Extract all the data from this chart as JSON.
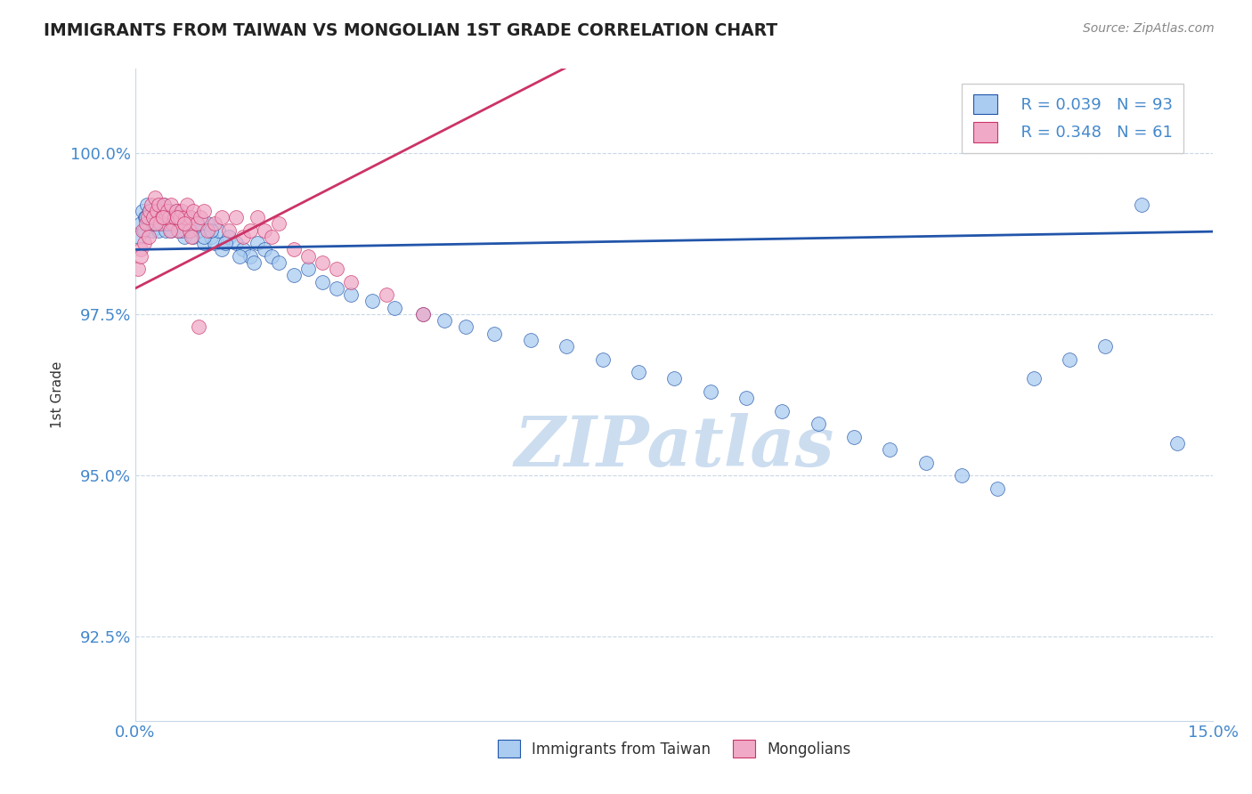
{
  "title": "IMMIGRANTS FROM TAIWAN VS MONGOLIAN 1ST GRADE CORRELATION CHART",
  "source_text": "Source: ZipAtlas.com",
  "ylabel": "1st Grade",
  "xlim": [
    0.0,
    15.0
  ],
  "ylim": [
    91.2,
    101.3
  ],
  "xtick_labels": [
    "0.0%",
    "15.0%"
  ],
  "xtick_positions": [
    0.0,
    15.0
  ],
  "ytick_labels": [
    "92.5%",
    "95.0%",
    "97.5%",
    "100.0%"
  ],
  "ytick_positions": [
    92.5,
    95.0,
    97.5,
    100.0
  ],
  "legend_label1": "Immigrants from Taiwan",
  "legend_label2": "Mongolians",
  "R1": 0.039,
  "N1": 93,
  "R2": 0.348,
  "N2": 61,
  "color_taiwan": "#aaccf0",
  "color_mongolia": "#f0aac8",
  "color_taiwan_line": "#2255aa",
  "color_mongolia_line": "#cc3366",
  "title_color": "#222222",
  "axis_label_color": "#333333",
  "tick_color": "#4488cc",
  "source_color": "#888888",
  "watermark_color": "#ccddf0",
  "grid_color": "#c8d8e8",
  "taiwan_x": [
    0.05,
    0.08,
    0.1,
    0.12,
    0.14,
    0.16,
    0.18,
    0.2,
    0.22,
    0.24,
    0.26,
    0.28,
    0.3,
    0.32,
    0.34,
    0.36,
    0.38,
    0.4,
    0.42,
    0.44,
    0.46,
    0.48,
    0.5,
    0.52,
    0.55,
    0.58,
    0.6,
    0.62,
    0.65,
    0.68,
    0.7,
    0.75,
    0.8,
    0.85,
    0.9,
    0.95,
    1.0,
    1.05,
    1.1,
    1.15,
    1.2,
    1.3,
    1.4,
    1.5,
    1.6,
    1.7,
    1.8,
    1.9,
    2.0,
    2.2,
    2.4,
    2.6,
    2.8,
    3.0,
    3.3,
    3.6,
    4.0,
    4.3,
    4.6,
    5.0,
    5.5,
    6.0,
    6.5,
    7.0,
    7.5,
    8.0,
    8.5,
    9.0,
    9.5,
    10.0,
    10.5,
    11.0,
    11.5,
    12.0,
    12.5,
    13.0,
    13.5,
    14.0,
    14.5,
    0.15,
    0.25,
    0.35,
    0.45,
    0.55,
    0.65,
    0.75,
    0.85,
    0.95,
    1.05,
    1.25,
    1.45,
    1.65
  ],
  "taiwan_y": [
    98.7,
    98.9,
    99.1,
    98.8,
    99.0,
    99.2,
    98.9,
    99.1,
    99.0,
    98.8,
    99.1,
    98.9,
    99.0,
    98.8,
    99.1,
    99.0,
    98.9,
    99.2,
    98.8,
    99.0,
    98.9,
    99.1,
    98.8,
    99.0,
    98.9,
    99.1,
    98.8,
    99.0,
    98.9,
    98.7,
    99.0,
    98.8,
    98.7,
    98.9,
    98.8,
    98.6,
    98.9,
    98.7,
    98.6,
    98.8,
    98.5,
    98.7,
    98.6,
    98.5,
    98.4,
    98.6,
    98.5,
    98.4,
    98.3,
    98.1,
    98.2,
    98.0,
    97.9,
    97.8,
    97.7,
    97.6,
    97.5,
    97.4,
    97.3,
    97.2,
    97.1,
    97.0,
    96.8,
    96.6,
    96.5,
    96.3,
    96.2,
    96.0,
    95.8,
    95.6,
    95.4,
    95.2,
    95.0,
    94.8,
    96.5,
    96.8,
    97.0,
    99.2,
    95.5,
    99.0,
    98.9,
    99.1,
    98.9,
    99.0,
    98.8,
    99.0,
    98.9,
    98.7,
    98.8,
    98.6,
    98.4,
    98.3
  ],
  "mongolia_x": [
    0.04,
    0.07,
    0.1,
    0.12,
    0.15,
    0.17,
    0.2,
    0.22,
    0.25,
    0.27,
    0.3,
    0.32,
    0.35,
    0.37,
    0.4,
    0.42,
    0.45,
    0.47,
    0.5,
    0.52,
    0.55,
    0.57,
    0.6,
    0.62,
    0.65,
    0.68,
    0.7,
    0.72,
    0.75,
    0.77,
    0.8,
    0.85,
    0.9,
    0.95,
    1.0,
    1.1,
    1.2,
    1.3,
    1.4,
    1.5,
    1.6,
    1.7,
    1.8,
    1.9,
    2.0,
    2.2,
    2.4,
    2.6,
    2.8,
    3.0,
    3.5,
    4.0,
    0.08,
    0.18,
    0.28,
    0.38,
    0.48,
    0.58,
    0.68,
    0.78,
    0.88
  ],
  "mongolia_y": [
    98.2,
    98.5,
    98.8,
    98.6,
    98.9,
    99.0,
    99.1,
    99.2,
    99.0,
    99.3,
    99.1,
    99.2,
    98.9,
    99.0,
    99.2,
    99.0,
    99.1,
    99.0,
    99.2,
    98.9,
    99.0,
    99.1,
    98.8,
    99.0,
    99.1,
    98.9,
    99.0,
    99.2,
    98.8,
    99.0,
    99.1,
    98.9,
    99.0,
    99.1,
    98.8,
    98.9,
    99.0,
    98.8,
    99.0,
    98.7,
    98.8,
    99.0,
    98.8,
    98.7,
    98.9,
    98.5,
    98.4,
    98.3,
    98.2,
    98.0,
    97.8,
    97.5,
    98.4,
    98.7,
    98.9,
    99.0,
    98.8,
    99.0,
    98.9,
    98.7,
    97.3
  ]
}
